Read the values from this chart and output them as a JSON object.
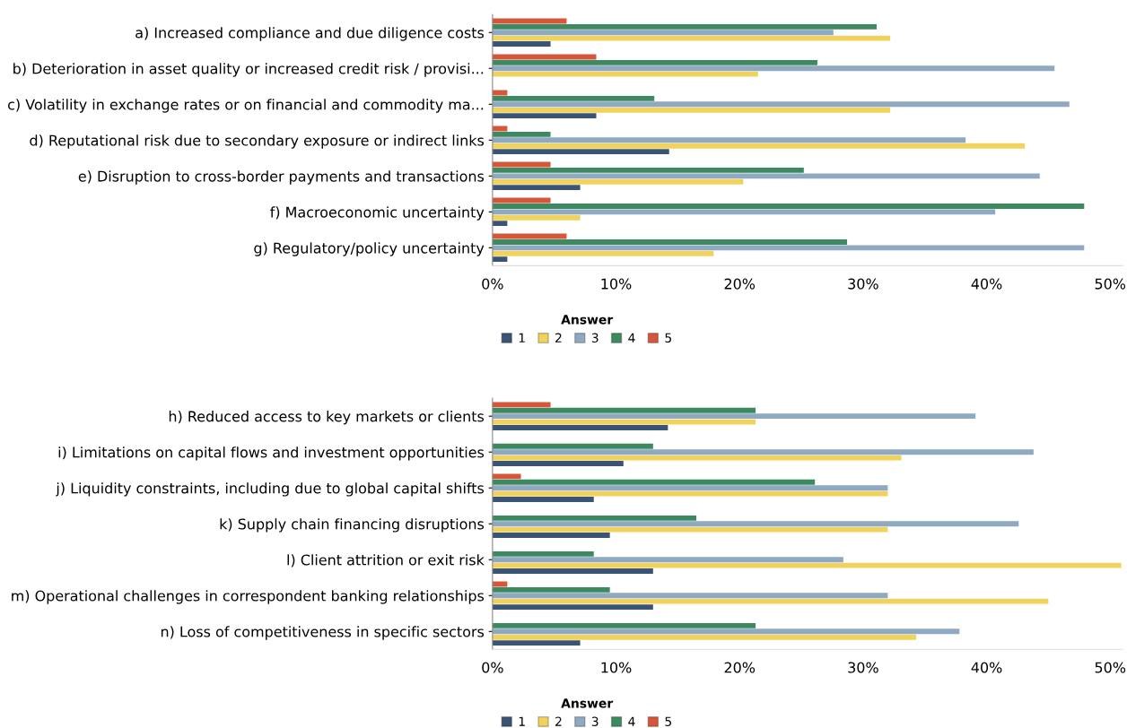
{
  "chart_data": [
    {
      "type": "bar",
      "orientation": "horizontal",
      "categories": [
        "a) Increased compliance and due diligence costs",
        "b) Deterioration in asset quality or increased credit risk / provisi...",
        "c) Volatility in exchange rates or on financial and commodity ma...",
        "d) Reputational risk due to secondary exposure or indirect links",
        "e) Disruption to cross-border payments and transactions",
        "f) Macroeconomic uncertainty",
        "g) Regulatory/policy uncertainty"
      ],
      "series": [
        {
          "name": "1",
          "color": "#3a5474",
          "values": [
            4.7,
            null,
            8.4,
            14.3,
            7.1,
            1.2,
            1.2
          ]
        },
        {
          "name": "2",
          "color": "#f0d35e",
          "values": [
            32.2,
            21.5,
            32.2,
            43.1,
            20.3,
            7.1,
            17.9
          ]
        },
        {
          "name": "3",
          "color": "#8ea9c1",
          "values": [
            27.6,
            45.5,
            46.7,
            38.3,
            44.3,
            40.7,
            47.9
          ]
        },
        {
          "name": "4",
          "color": "#3d8a60",
          "values": [
            31.1,
            26.3,
            13.1,
            4.7,
            25.2,
            47.9,
            28.7
          ]
        },
        {
          "name": "5",
          "color": "#d6563b",
          "values": [
            6.0,
            8.4,
            1.2,
            1.2,
            4.7,
            4.7,
            6.0
          ]
        }
      ],
      "xlim": [
        0,
        51
      ],
      "xticks": [
        {
          "value": 0,
          "label": "0%"
        },
        {
          "value": 10,
          "label": "10%"
        },
        {
          "value": 20,
          "label": "20%"
        },
        {
          "value": 30,
          "label": "30%"
        },
        {
          "value": 40,
          "label": "40%"
        },
        {
          "value": 50,
          "label": "50%"
        }
      ],
      "legend": "bottom",
      "legend_title": "Answer",
      "grid": false
    },
    {
      "type": "bar",
      "orientation": "horizontal",
      "categories": [
        "h) Reduced access to key markets or clients",
        "i) Limitations on capital flows and investment opportunities",
        "j) Liquidity constraints, including due to global capital shifts",
        "k) Supply chain financing disruptions",
        "l) Client attrition or exit risk",
        "m) Operational challenges in correspondent banking relationships",
        "n) Loss of competitiveness in specific sectors"
      ],
      "series": [
        {
          "name": "1",
          "color": "#3a5474",
          "values": [
            14.2,
            10.6,
            8.2,
            9.5,
            13.0,
            13.0,
            7.1
          ]
        },
        {
          "name": "2",
          "color": "#f0d35e",
          "values": [
            21.3,
            33.1,
            32.0,
            32.0,
            50.9,
            45.0,
            34.3
          ]
        },
        {
          "name": "3",
          "color": "#8ea9c1",
          "values": [
            39.1,
            43.8,
            32.0,
            42.6,
            28.4,
            32.0,
            37.8
          ]
        },
        {
          "name": "4",
          "color": "#3d8a60",
          "values": [
            21.3,
            13.0,
            26.1,
            16.5,
            8.2,
            9.5,
            21.3
          ]
        },
        {
          "name": "5",
          "color": "#d6563b",
          "values": [
            4.7,
            null,
            2.3,
            null,
            null,
            1.2,
            null
          ]
        }
      ],
      "xlim": [
        0,
        51
      ],
      "xticks": [
        {
          "value": 0,
          "label": "0%"
        },
        {
          "value": 10,
          "label": "10%"
        },
        {
          "value": 20,
          "label": "20%"
        },
        {
          "value": 30,
          "label": "30%"
        },
        {
          "value": 40,
          "label": "40%"
        },
        {
          "value": 50,
          "label": "50%"
        }
      ],
      "legend": "bottom",
      "legend_title": "Answer",
      "grid": false
    }
  ]
}
